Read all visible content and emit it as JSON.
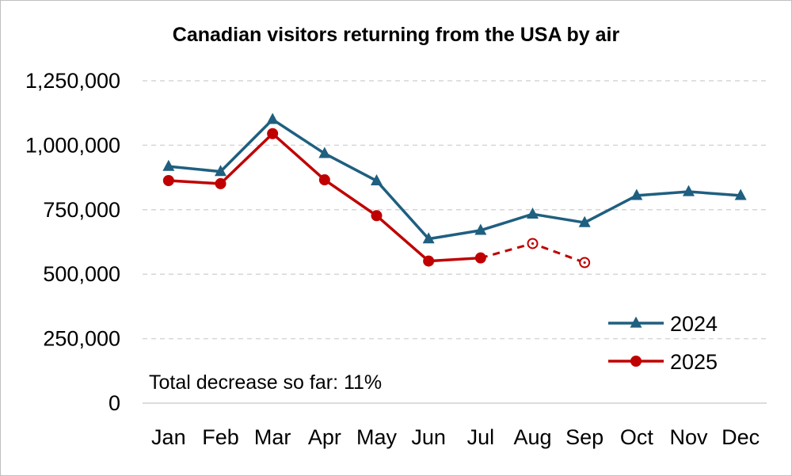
{
  "chart_data": {
    "type": "line",
    "title": "Canadian visitors returning from the USA by air",
    "categories": [
      "Jan",
      "Feb",
      "Mar",
      "Apr",
      "May",
      "Jun",
      "Jul",
      "Aug",
      "Sep",
      "Oct",
      "Nov",
      "Dec"
    ],
    "ylim": [
      0,
      1250000
    ],
    "yticks": [
      "0",
      "250,000",
      "500,000",
      "750,000",
      "1,000,000",
      "1,250,000"
    ],
    "ytick_values": [
      0,
      250000,
      500000,
      750000,
      1000000,
      1250000
    ],
    "grid": "horizontal-dashed",
    "legend_position": "right",
    "series": [
      {
        "name": "2024",
        "color": "#1f5f80",
        "marker": "triangle",
        "values": [
          918000,
          898000,
          1100000,
          968000,
          862000,
          637000,
          670000,
          733000,
          700000,
          805000,
          820000,
          805000
        ]
      },
      {
        "name": "2025",
        "color": "#c00000",
        "marker": "circle",
        "values": [
          863000,
          851000,
          1045000,
          866000,
          727000,
          551000,
          563000,
          619000,
          545000,
          null,
          null,
          null
        ],
        "estimated_from_index": 7
      }
    ],
    "annotation": "Total decrease so far: 11%"
  }
}
